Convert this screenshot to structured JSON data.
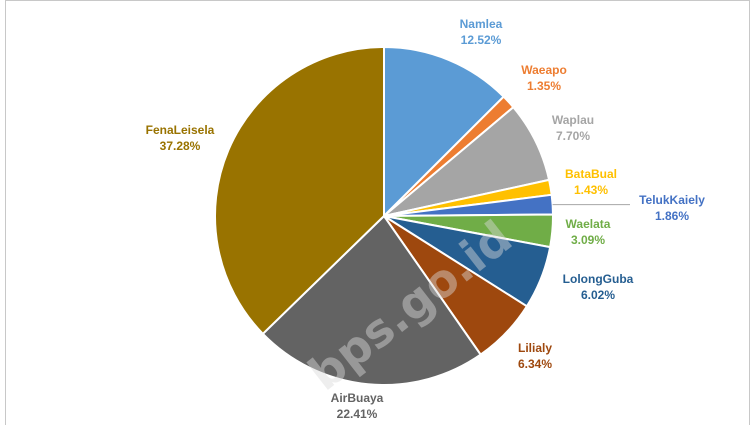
{
  "chart_data": {
    "type": "pie",
    "title": "",
    "watermark": "bps.go.id",
    "slices": [
      {
        "name": "Namlea",
        "value": 12.52,
        "label": "12.52%",
        "color": "#5b9bd5"
      },
      {
        "name": "Waeapo",
        "value": 1.35,
        "label": "1.35%",
        "color": "#ed7d31"
      },
      {
        "name": "Waplau",
        "value": 7.7,
        "label": "7.70%",
        "color": "#a5a5a5"
      },
      {
        "name": "BataBual",
        "value": 1.43,
        "label": "1.43%",
        "color": "#ffc000"
      },
      {
        "name": "TelukKaiely",
        "value": 1.86,
        "label": "1.86%",
        "color": "#4472c4"
      },
      {
        "name": "Waelata",
        "value": 3.09,
        "label": "3.09%",
        "color": "#70ad47"
      },
      {
        "name": "LolongGuba",
        "value": 6.02,
        "label": "6.02%",
        "color": "#255e91"
      },
      {
        "name": "Lilialy",
        "value": 6.34,
        "label": "6.34%",
        "color": "#9e480e"
      },
      {
        "name": "AirBuaya",
        "value": 22.41,
        "label": "22.41%",
        "color": "#636363"
      },
      {
        "name": "FenaLeisela",
        "value": 37.28,
        "label": "37.28%",
        "color": "#997300"
      }
    ]
  }
}
